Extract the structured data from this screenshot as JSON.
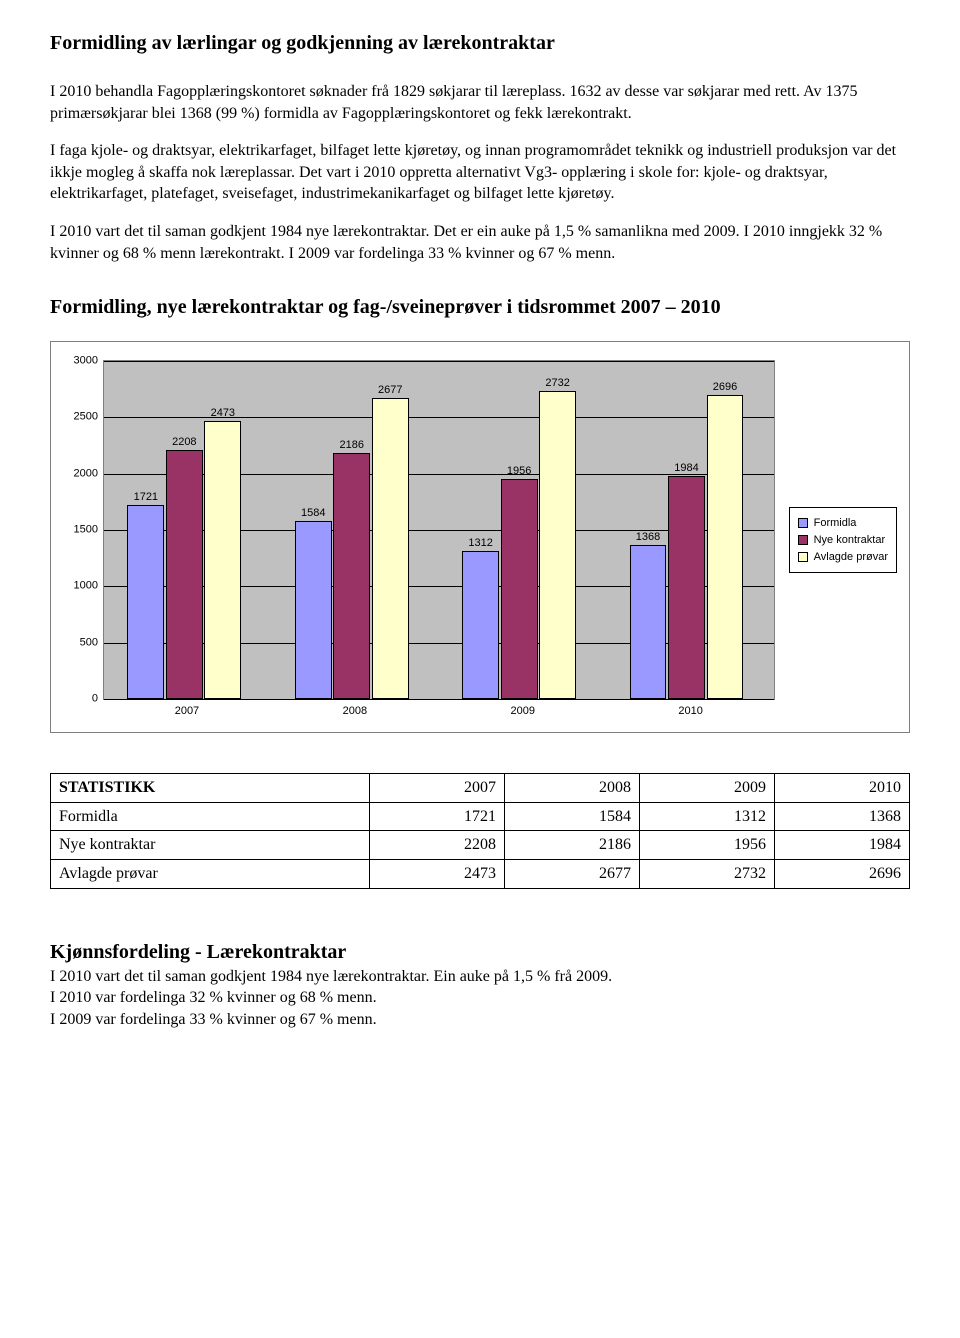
{
  "title": "Formidling av lærlingar og godkjenning av lærekontraktar",
  "paragraphs": {
    "p1": "I 2010 behandla Fagopplæringskontoret søknader frå 1829 søkjarar til læreplass. 1632 av desse var søkjarar med rett. Av 1375 primærsøkjarar blei 1368 (99 %) formidla av Fagopplæringskontoret og fekk lærekontrakt.",
    "p2": "I faga kjole- og draktsyar, elektrikarfaget, bilfaget lette kjøretøy, og innan programområdet teknikk og industriell produksjon var det ikkje mogleg å skaffa nok læreplassar. Det vart i 2010 oppretta alternativt Vg3- opplæring i skole for: kjole- og draktsyar, elektrikarfaget, platefaget, sveisefaget, industrimekanikarfaget og bilfaget lette kjøretøy.",
    "p3": "I 2010 vart det til saman godkjent 1984 nye lærekontraktar. Det er ein auke på 1,5 % samanlikna med 2009. I 2010 inngjekk 32 % kvinner og 68 % menn lærekontrakt. I 2009 var fordelinga 33 % kvinner og 67 % menn."
  },
  "chart_heading": "Formidling, nye lærekontraktar og fag-/sveineprøver i tidsrommet 2007 – 2010",
  "chart": {
    "type": "bar",
    "categories": [
      "2007",
      "2008",
      "2009",
      "2010"
    ],
    "series": [
      {
        "name": "Formidla",
        "color": "#9999ff",
        "values": [
          1721,
          1584,
          1312,
          1368
        ]
      },
      {
        "name": "Nye kontraktar",
        "color": "#993366",
        "values": [
          2208,
          2186,
          1956,
          1984
        ]
      },
      {
        "name": "Avlagde prøvar",
        "color": "#ffffcc",
        "values": [
          2473,
          2677,
          2732,
          2696
        ]
      }
    ],
    "ymin": 0,
    "ymax": 3000,
    "ystep": 500,
    "background_color": "#c0c0c0",
    "grid_color": "#000000",
    "border_color": "#7f7f7f",
    "label_fontsize": 11
  },
  "table": {
    "header_label": "STATISTIKK",
    "columns": [
      "2007",
      "2008",
      "2009",
      "2010"
    ],
    "rows": [
      {
        "label": "Formidla",
        "cells": [
          "1721",
          "1584",
          "1312",
          "1368"
        ]
      },
      {
        "label": "Nye kontraktar",
        "cells": [
          "2208",
          "2186",
          "1956",
          "1984"
        ]
      },
      {
        "label": "Avlagde prøvar",
        "cells": [
          "2473",
          "2677",
          "2732",
          "2696"
        ]
      }
    ]
  },
  "footer": {
    "title": "Kjønnsfordeling - Lærekontraktar",
    "lines": [
      "I 2010 vart det til saman godkjent 1984 nye lærekontraktar.  Ein auke på 1,5 % frå 2009.",
      "I 2010 var fordelinga 32 % kvinner og 68 % menn.",
      "I 2009 var fordelinga 33 % kvinner og 67 % menn."
    ]
  }
}
